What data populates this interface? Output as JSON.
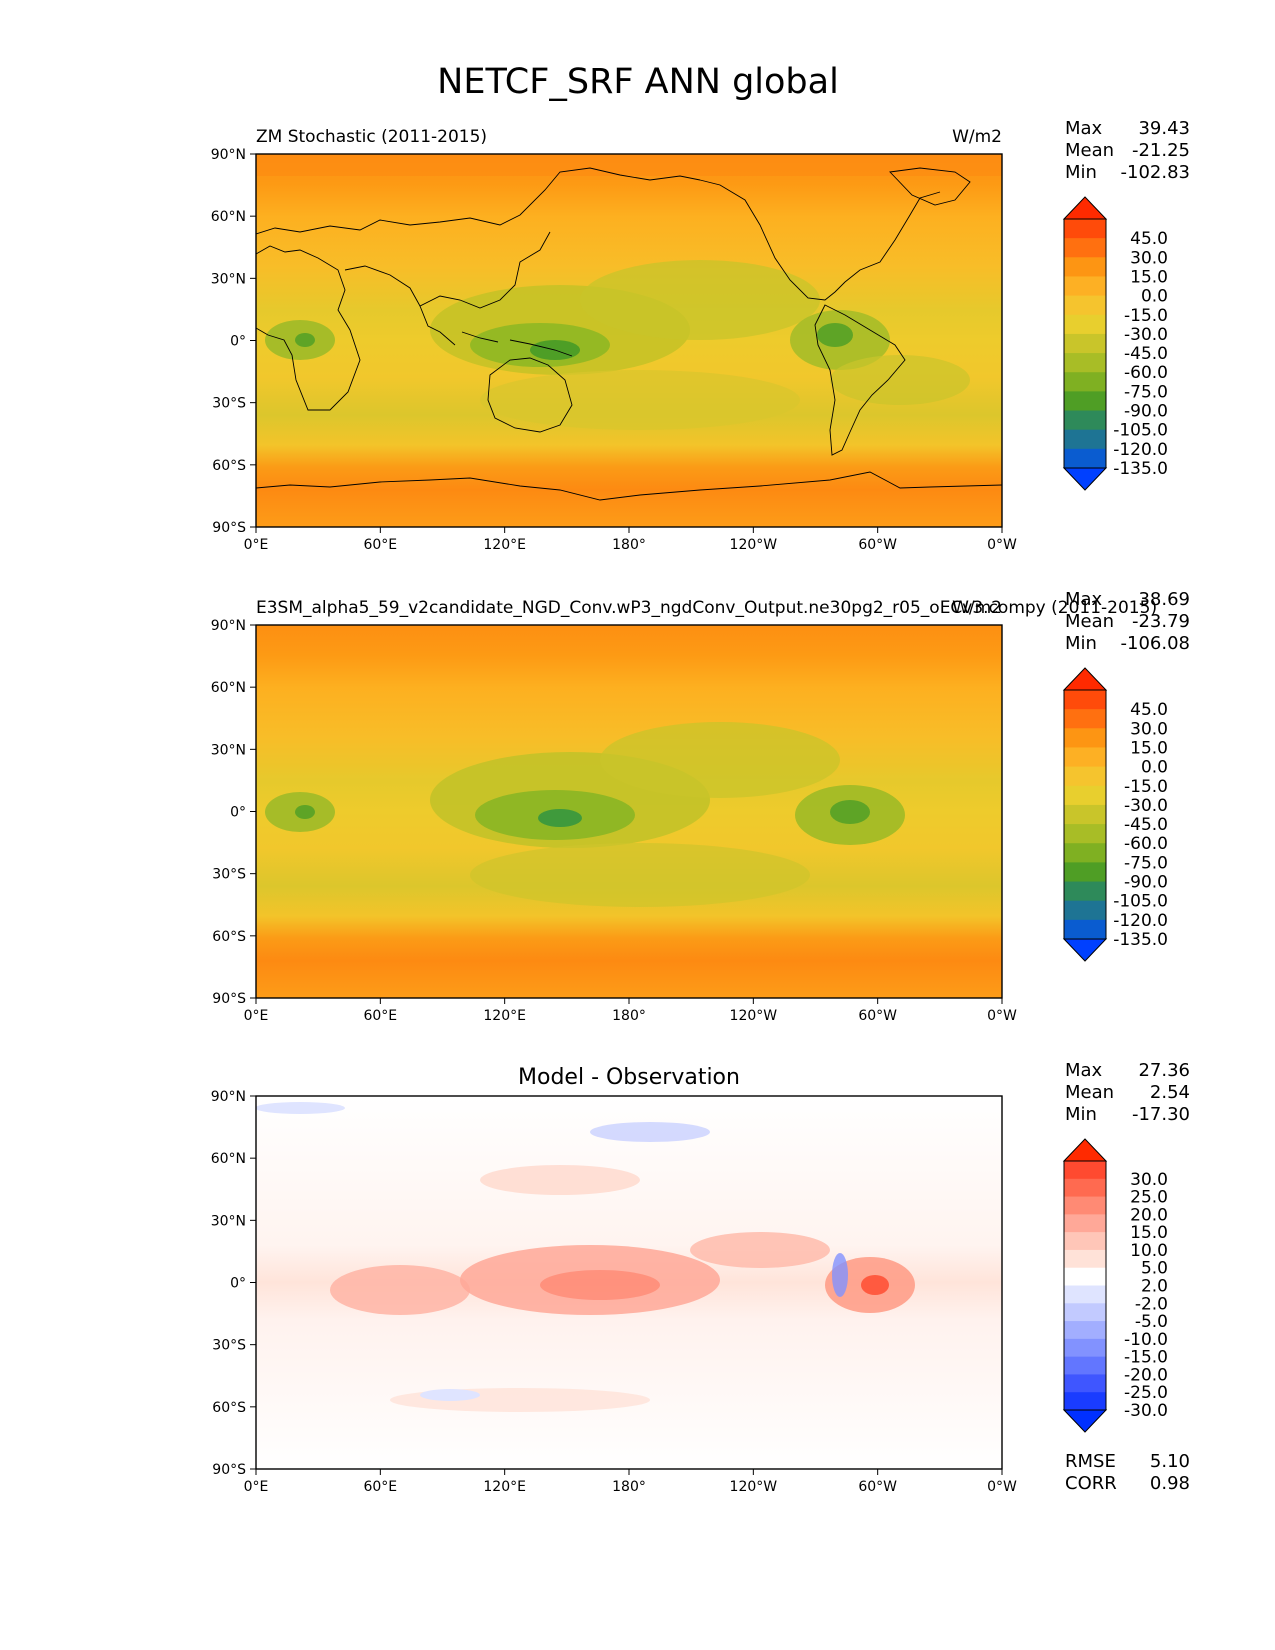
{
  "figure": {
    "title": "NETCF_SRF ANN global"
  },
  "chart_data": [
    {
      "type": "heatmap",
      "title_left": "ZM Stochastic (2011-2015)",
      "title_right": "W/m2",
      "title_center": "",
      "stats": {
        "labels": [
          "Max",
          "Mean",
          "Min"
        ],
        "values": [
          "39.43",
          "-21.25",
          "-102.83"
        ]
      },
      "colorbar": {
        "levels": [
          "45.0",
          "30.0",
          "15.0",
          "0.0",
          "-15.0",
          "-30.0",
          "-45.0",
          "-60.0",
          "-75.0",
          "-90.0",
          "-105.0",
          "-120.0",
          "-135.0"
        ],
        "colors": [
          "#ff2a00",
          "#ff4b0a",
          "#ff7010",
          "#fd9513",
          "#fdb024",
          "#f5c42e",
          "#e8cf2e",
          "#c9c52a",
          "#a8bd26",
          "#7fb022",
          "#4f9e25",
          "#2e8a5a",
          "#1e7494",
          "#0a5cd0",
          "#0040ff"
        ]
      },
      "extra": []
    },
    {
      "type": "heatmap",
      "title_left": "E3SM_alpha5_59_v2candidate_NGD_Conv.wP3_ngdConv_Output.ne30pg2_r05_oECv3.compy (2011-2015)",
      "title_right": "W/m2",
      "title_center": "",
      "stats": {
        "labels": [
          "Max",
          "Mean",
          "Min"
        ],
        "values": [
          "38.69",
          "-23.79",
          "-106.08"
        ]
      },
      "colorbar": {
        "levels": [
          "45.0",
          "30.0",
          "15.0",
          "0.0",
          "-15.0",
          "-30.0",
          "-45.0",
          "-60.0",
          "-75.0",
          "-90.0",
          "-105.0",
          "-120.0",
          "-135.0"
        ],
        "colors": [
          "#ff2a00",
          "#ff4b0a",
          "#ff7010",
          "#fd9513",
          "#fdb024",
          "#f5c42e",
          "#e8cf2e",
          "#c9c52a",
          "#a8bd26",
          "#7fb022",
          "#4f9e25",
          "#2e8a5a",
          "#1e7494",
          "#0a5cd0",
          "#0040ff"
        ]
      },
      "extra": []
    },
    {
      "type": "heatmap",
      "title_left": "",
      "title_right": "",
      "title_center": "Model - Observation",
      "stats": {
        "labels": [
          "Max",
          "Mean",
          "Min"
        ],
        "values": [
          "27.36",
          "2.54",
          "-17.30"
        ]
      },
      "colorbar": {
        "levels": [
          "30.0",
          "25.0",
          "20.0",
          "15.0",
          "10.0",
          "5.0",
          "2.0",
          "-2.0",
          "-5.0",
          "-10.0",
          "-15.0",
          "-20.0",
          "-25.0",
          "-30.0"
        ],
        "colors": [
          "#ff2a00",
          "#ff4a30",
          "#ff6a50",
          "#ff8a74",
          "#ffa898",
          "#ffc6b8",
          "#ffe2d8",
          "#ffffff",
          "#dfe4ff",
          "#c2caff",
          "#a2aeff",
          "#8292ff",
          "#6276ff",
          "#3f56ff",
          "#1a3cff",
          "#0030ff"
        ]
      },
      "extra": [
        {
          "label": "RMSE",
          "value": "5.10"
        },
        {
          "label": "CORR",
          "value": "0.98"
        }
      ]
    }
  ],
  "axes": {
    "lat_labels": [
      "90°N",
      "60°N",
      "30°N",
      "0°",
      "30°S",
      "60°S",
      "90°S"
    ],
    "lon_labels": [
      "0°E",
      "60°E",
      "120°E",
      "180°",
      "120°W",
      "60°W",
      "0°W"
    ],
    "lat_range": [
      -90,
      90
    ],
    "lon_range": [
      0,
      360
    ]
  }
}
